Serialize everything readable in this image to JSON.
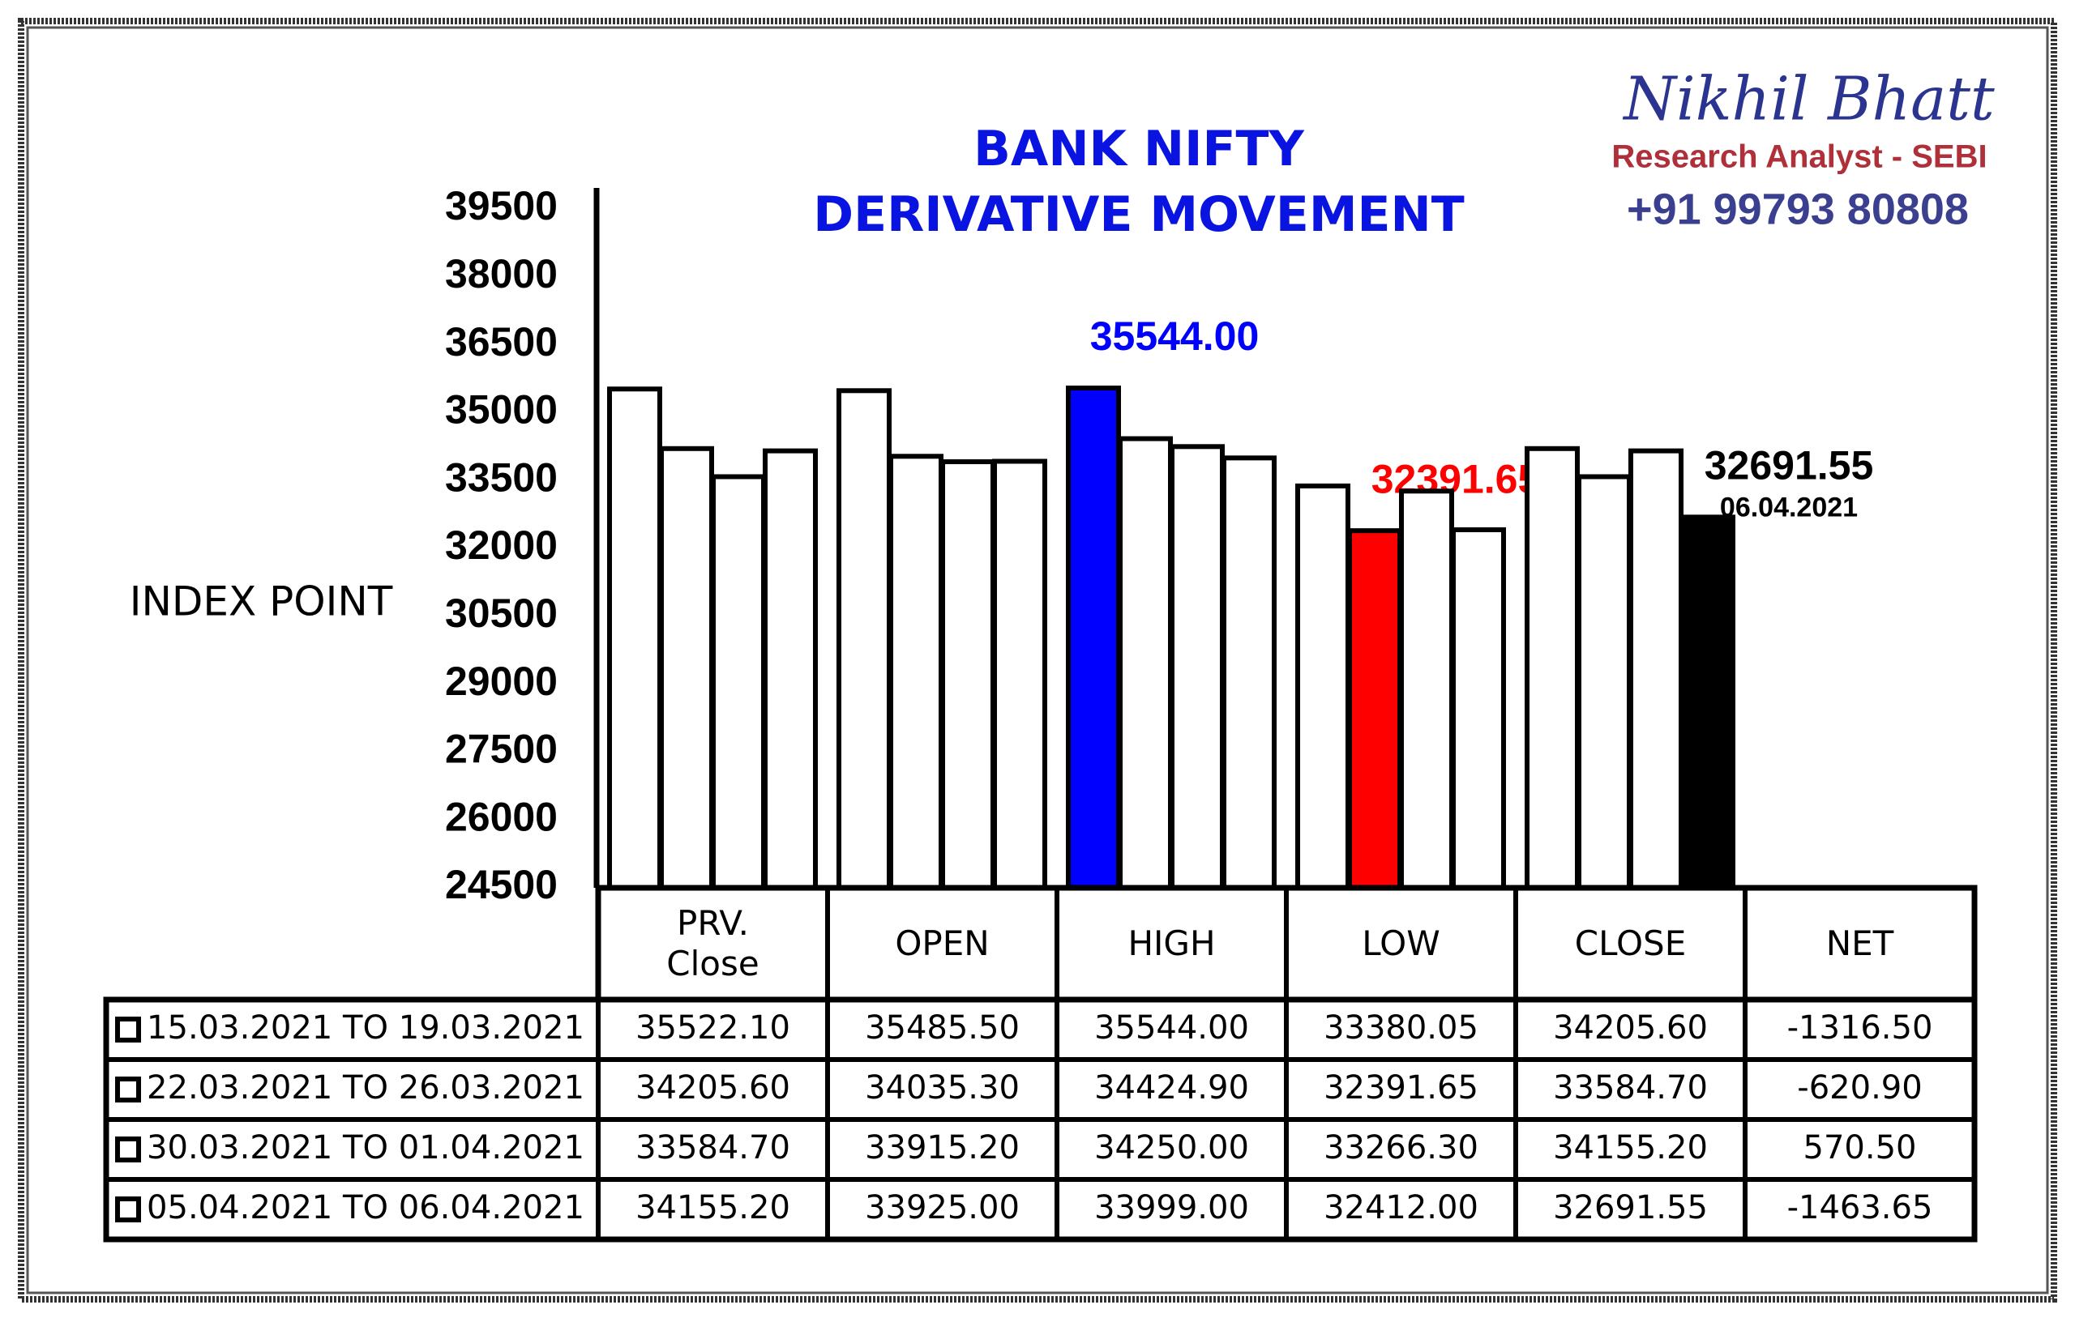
{
  "brand": {
    "name": "Nikhil Bhatt",
    "role": "Research Analyst - SEBI",
    "phone": "+91 99793 80808"
  },
  "chart_data": {
    "type": "bar",
    "title": "BANK NIFTY DERIVATIVE MOVEMENT",
    "y_label": "INDEX POINT",
    "ylim": [
      24500,
      39500
    ],
    "yticks": [
      24500,
      26000,
      27500,
      29000,
      30500,
      32000,
      33500,
      35000,
      36500,
      38000,
      39500
    ],
    "categories": [
      "PRV. Close",
      "OPEN",
      "HIGH",
      "LOW",
      "CLOSE",
      "NET"
    ],
    "series": [
      {
        "name": "15.03.2021 TO 19.03.2021",
        "values": [
          35522.1,
          35485.5,
          35544.0,
          33380.05,
          34205.6,
          -1316.5
        ],
        "value_labels": [
          "35522.10",
          "35485.50",
          "35544.00",
          "33380.05",
          "34205.60",
          "-1316.50"
        ],
        "colors": [
          "#ffffff",
          "#ffffff",
          "#0000ff",
          "#ffffff",
          "#ffffff",
          "#ffffff"
        ]
      },
      {
        "name": "22.03.2021 TO 26.03.2021",
        "values": [
          34205.6,
          34035.3,
          34424.9,
          32391.65,
          33584.7,
          -620.9
        ],
        "value_labels": [
          "34205.60",
          "34035.30",
          "34424.90",
          "32391.65",
          "33584.70",
          "-620.90"
        ],
        "colors": [
          "#ffffff",
          "#ffffff",
          "#ffffff",
          "#ff0000",
          "#ffffff",
          "#ffffff"
        ]
      },
      {
        "name": "30.03.2021 TO 01.04.2021",
        "values": [
          33584.7,
          33915.2,
          34250.0,
          33266.3,
          34155.2,
          570.5
        ],
        "value_labels": [
          "33584.70",
          "33915.20",
          "34250.00",
          "33266.30",
          "34155.20",
          "570.50"
        ],
        "colors": [
          "#ffffff",
          "#ffffff",
          "#ffffff",
          "#ffffff",
          "#ffffff",
          "#ffffff"
        ]
      },
      {
        "name": "05.04.2021 TO 06.04.2021",
        "values": [
          34155.2,
          33925.0,
          33999.0,
          32412.0,
          32691.55,
          -1463.65
        ],
        "value_labels": [
          "34155.20",
          "33925.00",
          "33999.00",
          "32412.00",
          "32691.55",
          "-1463.65"
        ],
        "colors": [
          "#ffffff",
          "#ffffff",
          "#ffffff",
          "#ffffff",
          "#000000",
          "#ffffff"
        ],
        "annotation": "06.04.2021"
      }
    ]
  }
}
